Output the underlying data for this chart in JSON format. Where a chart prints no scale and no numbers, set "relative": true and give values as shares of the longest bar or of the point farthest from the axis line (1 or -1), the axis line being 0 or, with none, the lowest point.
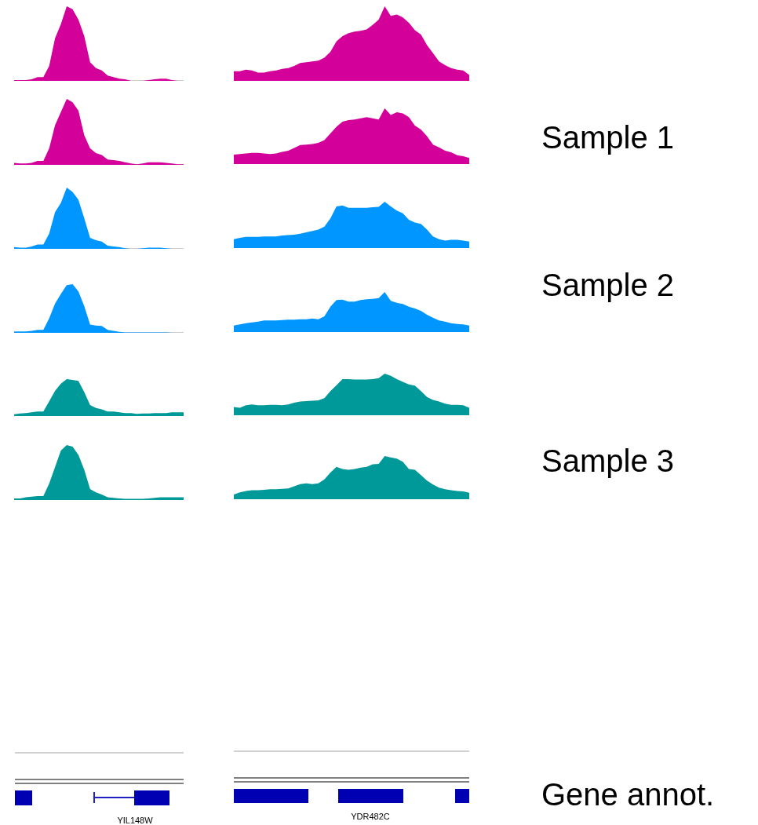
{
  "chart_data": [
    {
      "type": "area",
      "relative": true,
      "color": "#d4009a",
      "categories": [
        null,
        null,
        null,
        null,
        null,
        null,
        null,
        null,
        null,
        null,
        null,
        null,
        null,
        null,
        null,
        null,
        null,
        null,
        null,
        null,
        null,
        null,
        null,
        null,
        null,
        null,
        null,
        null,
        null,
        null
      ],
      "values": [
        0.01,
        0.01,
        0.01,
        0.02,
        0.05,
        0.05,
        0.2,
        0.57,
        0.76,
        1.0,
        0.96,
        0.82,
        0.6,
        0.25,
        0.17,
        0.14,
        0.07,
        0.05,
        0.03,
        0.02,
        0,
        0,
        0,
        0.01,
        0.02,
        0.03,
        0.03,
        0.01,
        0,
        0
      ]
    },
    {
      "type": "area",
      "relative": true,
      "color": "#d4009a",
      "categories": [
        null,
        null,
        null,
        null,
        null,
        null,
        null,
        null,
        null,
        null,
        null,
        null,
        null,
        null,
        null,
        null,
        null,
        null,
        null,
        null,
        null,
        null,
        null,
        null,
        null,
        null,
        null,
        null,
        null,
        null,
        null,
        null,
        null,
        null,
        null,
        null,
        null,
        null,
        null,
        null
      ],
      "values": [
        0.13,
        0.13,
        0.15,
        0.14,
        0.11,
        0.11,
        0.13,
        0.14,
        0.16,
        0.17,
        0.2,
        0.24,
        0.25,
        0.26,
        0.27,
        0.31,
        0.39,
        0.53,
        0.6,
        0.64,
        0.66,
        0.67,
        0.69,
        0.75,
        0.82,
        1.0,
        0.87,
        0.89,
        0.85,
        0.78,
        0.68,
        0.62,
        0.48,
        0.37,
        0.26,
        0.21,
        0.17,
        0.15,
        0.14,
        0.08
      ]
    },
    {
      "type": "area",
      "relative": true,
      "color": "#d4009a",
      "categories": [
        null,
        null,
        null,
        null,
        null,
        null,
        null,
        null,
        null,
        null,
        null,
        null,
        null,
        null,
        null,
        null,
        null,
        null,
        null,
        null,
        null,
        null,
        null,
        null,
        null,
        null,
        null,
        null,
        null,
        null
      ],
      "values": [
        0.03,
        0.02,
        0.02,
        0.03,
        0.06,
        0.06,
        0.25,
        0.6,
        0.8,
        1.0,
        0.95,
        0.82,
        0.45,
        0.25,
        0.18,
        0.15,
        0.08,
        0.07,
        0.06,
        0.04,
        0.02,
        0.01,
        0.02,
        0.04,
        0.04,
        0.04,
        0.03,
        0.02,
        0.01,
        0.01
      ]
    },
    {
      "type": "area",
      "relative": true,
      "color": "#d4009a",
      "categories": [
        null,
        null,
        null,
        null,
        null,
        null,
        null,
        null,
        null,
        null,
        null,
        null,
        null,
        null,
        null,
        null,
        null,
        null,
        null,
        null,
        null,
        null,
        null,
        null,
        null,
        null,
        null,
        null,
        null,
        null,
        null,
        null,
        null,
        null,
        null,
        null,
        null,
        null,
        null,
        null
      ],
      "values": [
        0.17,
        0.18,
        0.19,
        0.2,
        0.2,
        0.19,
        0.18,
        0.19,
        0.22,
        0.24,
        0.29,
        0.34,
        0.35,
        0.36,
        0.38,
        0.43,
        0.55,
        0.67,
        0.76,
        0.79,
        0.8,
        0.82,
        0.84,
        0.82,
        0.8,
        1.0,
        0.88,
        0.93,
        0.91,
        0.84,
        0.69,
        0.62,
        0.5,
        0.35,
        0.3,
        0.24,
        0.21,
        0.16,
        0.14,
        0.11
      ]
    },
    {
      "type": "area",
      "relative": true,
      "color": "#0096ff",
      "categories": [
        null,
        null,
        null,
        null,
        null,
        null,
        null,
        null,
        null,
        null,
        null,
        null,
        null,
        null,
        null,
        null,
        null,
        null,
        null,
        null,
        null,
        null,
        null,
        null,
        null,
        null,
        null,
        null,
        null,
        null
      ],
      "values": [
        0.03,
        0.02,
        0.02,
        0.04,
        0.07,
        0.07,
        0.25,
        0.6,
        0.75,
        1.0,
        0.93,
        0.8,
        0.5,
        0.18,
        0.14,
        0.12,
        0.05,
        0.04,
        0.03,
        0.01,
        0,
        0,
        0.01,
        0.02,
        0.02,
        0.02,
        0.01,
        0,
        0,
        0
      ]
    },
    {
      "type": "area",
      "relative": true,
      "color": "#0096ff",
      "categories": [
        null,
        null,
        null,
        null,
        null,
        null,
        null,
        null,
        null,
        null,
        null,
        null,
        null,
        null,
        null,
        null,
        null,
        null,
        null,
        null,
        null,
        null,
        null,
        null,
        null,
        null,
        null,
        null,
        null,
        null,
        null,
        null,
        null,
        null,
        null,
        null,
        null,
        null,
        null,
        null
      ],
      "values": [
        0.19,
        0.22,
        0.24,
        0.24,
        0.24,
        0.25,
        0.25,
        0.25,
        0.27,
        0.28,
        0.29,
        0.31,
        0.34,
        0.37,
        0.4,
        0.46,
        0.64,
        0.9,
        0.92,
        0.87,
        0.87,
        0.87,
        0.87,
        0.88,
        0.89,
        1.0,
        0.9,
        0.81,
        0.75,
        0.61,
        0.55,
        0.52,
        0.4,
        0.25,
        0.19,
        0.16,
        0.18,
        0.18,
        0.16,
        0.14
      ]
    },
    {
      "type": "area",
      "relative": true,
      "color": "#0096ff",
      "categories": [
        null,
        null,
        null,
        null,
        null,
        null,
        null,
        null,
        null,
        null,
        null,
        null,
        null,
        null,
        null,
        null,
        null,
        null,
        null,
        null,
        null,
        null,
        null,
        null,
        null,
        null,
        null,
        null,
        null,
        null
      ],
      "values": [
        0.03,
        0.03,
        0.03,
        0.04,
        0.06,
        0.06,
        0.3,
        0.6,
        0.8,
        0.98,
        1.0,
        0.85,
        0.55,
        0.17,
        0.15,
        0.14,
        0.06,
        0.04,
        0.02,
        0.01,
        0.01,
        0.01,
        0.01,
        0.01,
        0.01,
        0.01,
        0.01,
        0,
        0,
        0
      ]
    },
    {
      "type": "area",
      "relative": true,
      "color": "#0096ff",
      "categories": [
        null,
        null,
        null,
        null,
        null,
        null,
        null,
        null,
        null,
        null,
        null,
        null,
        null,
        null,
        null,
        null,
        null,
        null,
        null,
        null,
        null,
        null,
        null,
        null,
        null,
        null,
        null,
        null,
        null,
        null,
        null,
        null,
        null,
        null,
        null,
        null,
        null,
        null,
        null,
        null
      ],
      "values": [
        0.16,
        0.19,
        0.22,
        0.24,
        0.26,
        0.29,
        0.29,
        0.29,
        0.3,
        0.31,
        0.31,
        0.32,
        0.32,
        0.34,
        0.32,
        0.39,
        0.63,
        0.8,
        0.81,
        0.76,
        0.76,
        0.8,
        0.82,
        0.83,
        0.85,
        1.0,
        0.78,
        0.73,
        0.7,
        0.63,
        0.59,
        0.53,
        0.43,
        0.36,
        0.29,
        0.26,
        0.22,
        0.2,
        0.19,
        0.16
      ]
    },
    {
      "type": "area",
      "relative": true,
      "color": "#009999",
      "categories": [
        null,
        null,
        null,
        null,
        null,
        null,
        null,
        null,
        null,
        null,
        null,
        null,
        null,
        null,
        null,
        null,
        null,
        null,
        null,
        null,
        null,
        null,
        null,
        null,
        null,
        null,
        null,
        null,
        null,
        null
      ],
      "values": [
        0.05,
        0.07,
        0.08,
        0.1,
        0.12,
        0.12,
        0.4,
        0.68,
        0.88,
        1.0,
        0.98,
        0.95,
        0.65,
        0.3,
        0.22,
        0.18,
        0.12,
        0.12,
        0.1,
        0.08,
        0.08,
        0.06,
        0.07,
        0.07,
        0.08,
        0.08,
        0.08,
        0.1,
        0.1,
        0.1
      ]
    },
    {
      "type": "area",
      "relative": true,
      "color": "#009999",
      "categories": [
        null,
        null,
        null,
        null,
        null,
        null,
        null,
        null,
        null,
        null,
        null,
        null,
        null,
        null,
        null,
        null,
        null,
        null,
        null,
        null,
        null,
        null,
        null,
        null,
        null,
        null,
        null,
        null,
        null,
        null,
        null,
        null,
        null,
        null,
        null,
        null,
        null,
        null,
        null,
        null
      ],
      "values": [
        0.2,
        0.18,
        0.24,
        0.26,
        0.24,
        0.24,
        0.25,
        0.25,
        0.24,
        0.26,
        0.3,
        0.33,
        0.34,
        0.35,
        0.36,
        0.41,
        0.58,
        0.72,
        0.87,
        0.87,
        0.86,
        0.86,
        0.86,
        0.87,
        0.89,
        1.0,
        0.95,
        0.87,
        0.8,
        0.74,
        0.71,
        0.58,
        0.44,
        0.37,
        0.33,
        0.28,
        0.25,
        0.25,
        0.24,
        0.18
      ]
    },
    {
      "type": "area",
      "relative": true,
      "color": "#009999",
      "categories": [
        null,
        null,
        null,
        null,
        null,
        null,
        null,
        null,
        null,
        null,
        null,
        null,
        null,
        null,
        null,
        null,
        null,
        null,
        null,
        null,
        null,
        null,
        null,
        null,
        null,
        null,
        null,
        null,
        null,
        null
      ],
      "values": [
        0.03,
        0.03,
        0.05,
        0.06,
        0.07,
        0.07,
        0.3,
        0.6,
        0.9,
        1.0,
        0.97,
        0.82,
        0.55,
        0.2,
        0.14,
        0.1,
        0.05,
        0.04,
        0.03,
        0.02,
        0.02,
        0.02,
        0.02,
        0.03,
        0.04,
        0.05,
        0.05,
        0.05,
        0.05,
        0.05
      ]
    },
    {
      "type": "area",
      "relative": true,
      "color": "#009999",
      "categories": [
        null,
        null,
        null,
        null,
        null,
        null,
        null,
        null,
        null,
        null,
        null,
        null,
        null,
        null,
        null,
        null,
        null,
        null,
        null,
        null,
        null,
        null,
        null,
        null,
        null,
        null,
        null,
        null,
        null,
        null,
        null,
        null,
        null,
        null,
        null,
        null,
        null,
        null,
        null,
        null
      ],
      "values": [
        0.11,
        0.16,
        0.19,
        0.21,
        0.21,
        0.22,
        0.23,
        0.23,
        0.24,
        0.25,
        0.3,
        0.35,
        0.37,
        0.35,
        0.37,
        0.46,
        0.62,
        0.75,
        0.7,
        0.68,
        0.7,
        0.73,
        0.75,
        0.81,
        0.82,
        1.0,
        0.97,
        0.94,
        0.87,
        0.7,
        0.68,
        0.56,
        0.43,
        0.34,
        0.27,
        0.23,
        0.21,
        0.19,
        0.18,
        0.15
      ]
    },
    {
      "type": "other",
      "annotations": [
        "Sample 1",
        "Sample 2",
        "Sample 3",
        "Gene annot.",
        "YIL148W",
        "YDR482C"
      ]
    }
  ]
}
